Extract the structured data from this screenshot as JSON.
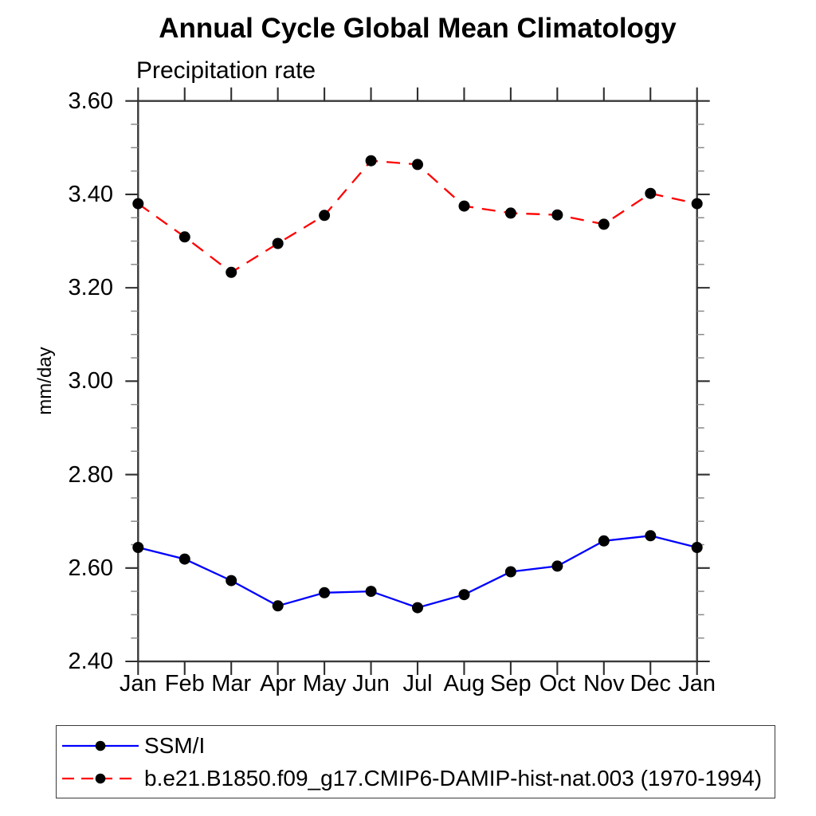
{
  "chart_data": {
    "type": "line",
    "title": "Annual Cycle Global Mean Climatology",
    "subtitle": "Precipitation rate",
    "ylabel": "mm/day",
    "categories": [
      "Jan",
      "Feb",
      "Mar",
      "Apr",
      "May",
      "Jun",
      "Jul",
      "Aug",
      "Sep",
      "Oct",
      "Nov",
      "Dec",
      "Jan"
    ],
    "ylim": [
      2.4,
      3.6
    ],
    "ytick_values": [
      2.4,
      2.6,
      2.8,
      3.0,
      3.2,
      3.4,
      3.6
    ],
    "ytick_labels": [
      "2.40",
      "2.60",
      "2.80",
      "3.00",
      "3.20",
      "3.40",
      "3.60"
    ],
    "minor_tick_step": 0.05,
    "grid": false,
    "legend_position": "below-left",
    "series": [
      {
        "name": "SSM/I",
        "color": "#0000ff",
        "line_style": "solid",
        "marker": "filled-circle",
        "marker_color": "#000000",
        "values": [
          2.644,
          2.619,
          2.573,
          2.519,
          2.547,
          2.55,
          2.515,
          2.543,
          2.592,
          2.604,
          2.658,
          2.669,
          2.644
        ]
      },
      {
        "name": "b.e21.B1850.f09_g17.CMIP6-DAMIP-hist-nat.003 (1970-1994)",
        "color": "#ff0000",
        "line_style": "dashed",
        "marker": "filled-circle",
        "marker_color": "#000000",
        "values": [
          3.38,
          3.309,
          3.233,
          3.295,
          3.355,
          3.472,
          3.464,
          3.375,
          3.36,
          3.356,
          3.336,
          3.402,
          3.38
        ]
      }
    ]
  }
}
